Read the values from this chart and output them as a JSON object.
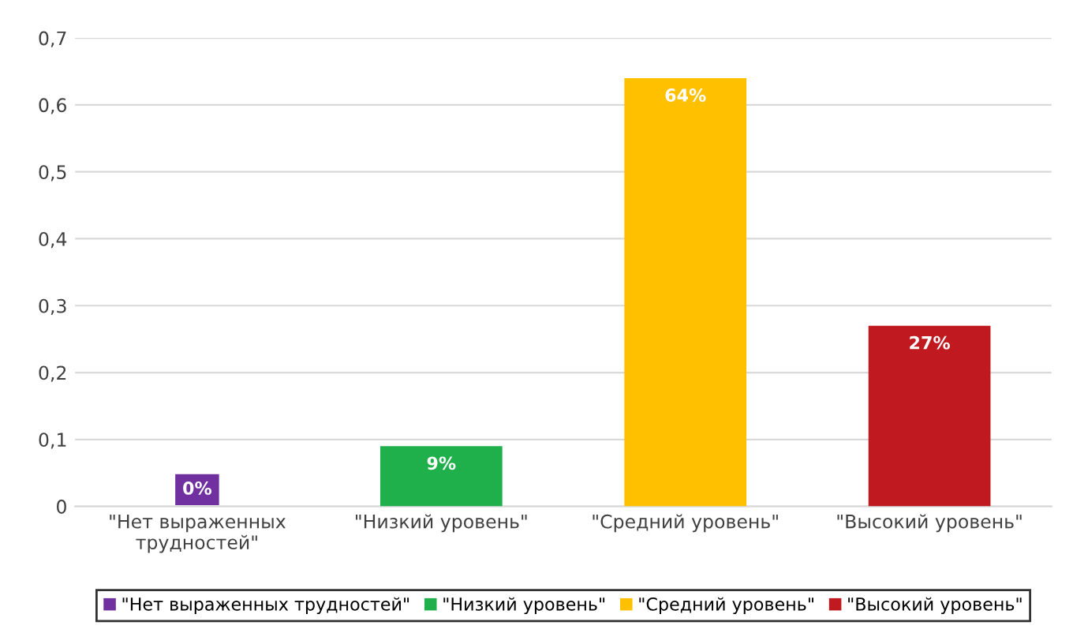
{
  "chart_data": {
    "type": "bar",
    "categories": [
      "\"Нет выраженных\nтрудностей\"",
      "\"Низкий уровень\"",
      "\"Средний уровень\"",
      "\"Высокий уровень\""
    ],
    "series": [
      {
        "name": "\"Нет выраженных трудностей\"",
        "color": "#7030a0",
        "values": [
          0,
          null,
          null,
          null
        ],
        "value_labels": [
          "0%",
          null,
          null,
          null
        ]
      },
      {
        "name": "\"Низкий уровень\"",
        "color": "#1fb04b",
        "values": [
          null,
          0.09,
          null,
          null
        ],
        "value_labels": [
          null,
          "9%",
          null,
          null
        ]
      },
      {
        "name": "\"Средний уровень\"",
        "color": "#ffc000",
        "values": [
          null,
          null,
          0.64,
          null
        ],
        "value_labels": [
          null,
          null,
          "64%",
          null
        ]
      },
      {
        "name": "\"Высокий уровень\"",
        "color": "#c0191f",
        "values": [
          null,
          null,
          null,
          0.27
        ],
        "value_labels": [
          null,
          null,
          null,
          "27%"
        ]
      }
    ],
    "ylim": [
      0,
      0.7
    ],
    "yticks": [
      0,
      {
        "value": 0.1,
        "label": "0,1"
      },
      {
        "value": 0.2,
        "label": "0,2"
      },
      {
        "value": 0.3,
        "label": "0,3"
      },
      {
        "value": 0.4,
        "label": "0,4"
      },
      {
        "value": 0.5,
        "label": "0,5"
      },
      {
        "value": 0.6,
        "label": "0,6"
      },
      {
        "value": 0.7,
        "label": "0,7"
      }
    ],
    "grid": "y",
    "legend": "bottom"
  }
}
